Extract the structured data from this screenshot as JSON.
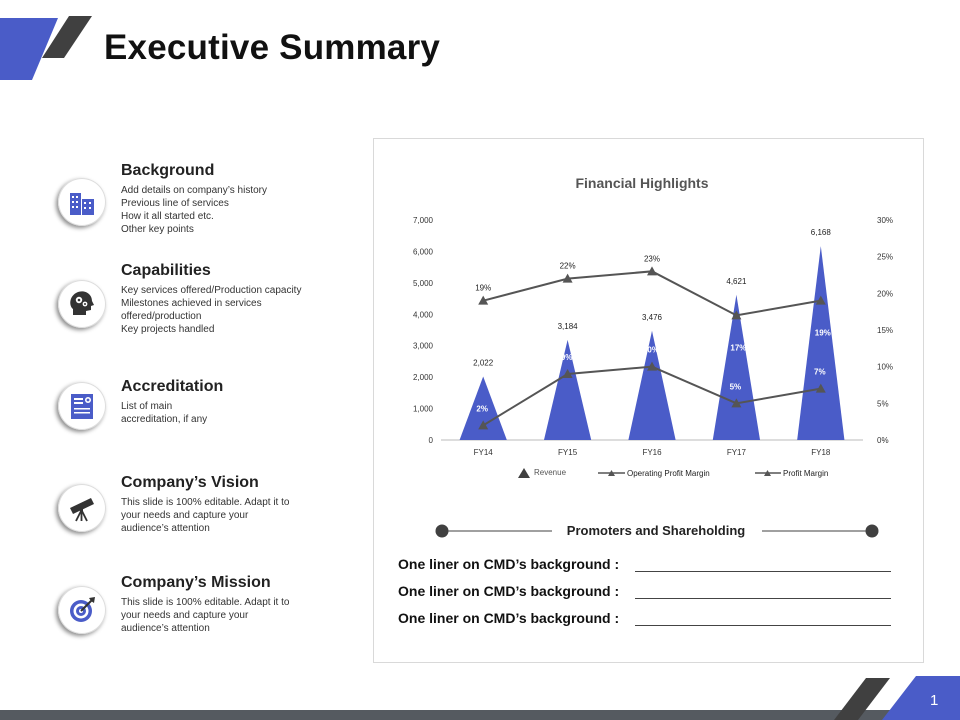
{
  "slide_title": "Executive Summary",
  "page_number": "1",
  "sections": [
    {
      "icon": "building-icon",
      "title": "Background",
      "lines": [
        "Add details on company’s history",
        "Previous line of services",
        "How it all started etc.",
        "Other key points"
      ]
    },
    {
      "icon": "head-gears-icon",
      "title": "Capabilities",
      "lines": [
        "Key services offered/Production capacity",
        "Milestones achieved in services",
        "offered/production",
        "Key projects handled"
      ]
    },
    {
      "icon": "certificate-icon",
      "title": "Accreditation",
      "lines": [
        "List of main",
        "accreditation, if any"
      ]
    },
    {
      "icon": "telescope-icon",
      "title": "Company’s Vision",
      "lines": [
        "This slide is 100% editable.  Adapt it to",
        "your needs and capture your",
        "audience’s attention"
      ]
    },
    {
      "icon": "target-icon",
      "title": "Company’s Mission",
      "lines": [
        "This slide is 100% editable.  Adapt it to",
        "your needs and capture your",
        "audience’s attention"
      ]
    }
  ],
  "promoters": {
    "heading": "Promoters and Shareholding",
    "lines": [
      "One liner on CMD’s background :",
      "One liner on CMD’s background :",
      "One liner on CMD’s background :"
    ]
  },
  "colors": {
    "accent": "#4a5cc8",
    "dark": "#404040",
    "line": "#555555"
  },
  "chart_data": {
    "type": "bar",
    "title": "Financial Highlights",
    "categories": [
      "FY14",
      "FY15",
      "FY16",
      "FY17",
      "FY18"
    ],
    "series": [
      {
        "name": "Revenue",
        "axis": "left",
        "style": "triangle",
        "values": [
          2022,
          3184,
          3476,
          4621,
          6168
        ],
        "labels": [
          "2,022",
          "3,184",
          "3,476",
          "4,621",
          "6,168"
        ]
      },
      {
        "name": "Operating Profit Margin",
        "axis": "right",
        "style": "line",
        "values": [
          2,
          9,
          10,
          5,
          7
        ],
        "labels": [
          "2%",
          "9%",
          "10%",
          "5%",
          "7%"
        ]
      },
      {
        "name": "Profit Margin",
        "axis": "right",
        "style": "line",
        "values": [
          19,
          22,
          23,
          17,
          19
        ],
        "labels": [
          "19%",
          "22%",
          "23%",
          "17%",
          "19%"
        ]
      }
    ],
    "y_left": {
      "min": 0,
      "max": 7000,
      "ticks": [
        "0",
        "1,000",
        "2,000",
        "3,000",
        "4,000",
        "5,000",
        "6,000",
        "7,000"
      ],
      "tick_values": [
        0,
        1000,
        2000,
        3000,
        4000,
        5000,
        6000,
        7000
      ]
    },
    "y_right": {
      "min": 0,
      "max": 30,
      "ticks": [
        "0%",
        "5%",
        "10%",
        "15%",
        "20%",
        "25%",
        "30%"
      ],
      "tick_values": [
        0,
        5,
        10,
        15,
        20,
        25,
        30
      ]
    },
    "legend_position": "bottom",
    "grid": false
  }
}
